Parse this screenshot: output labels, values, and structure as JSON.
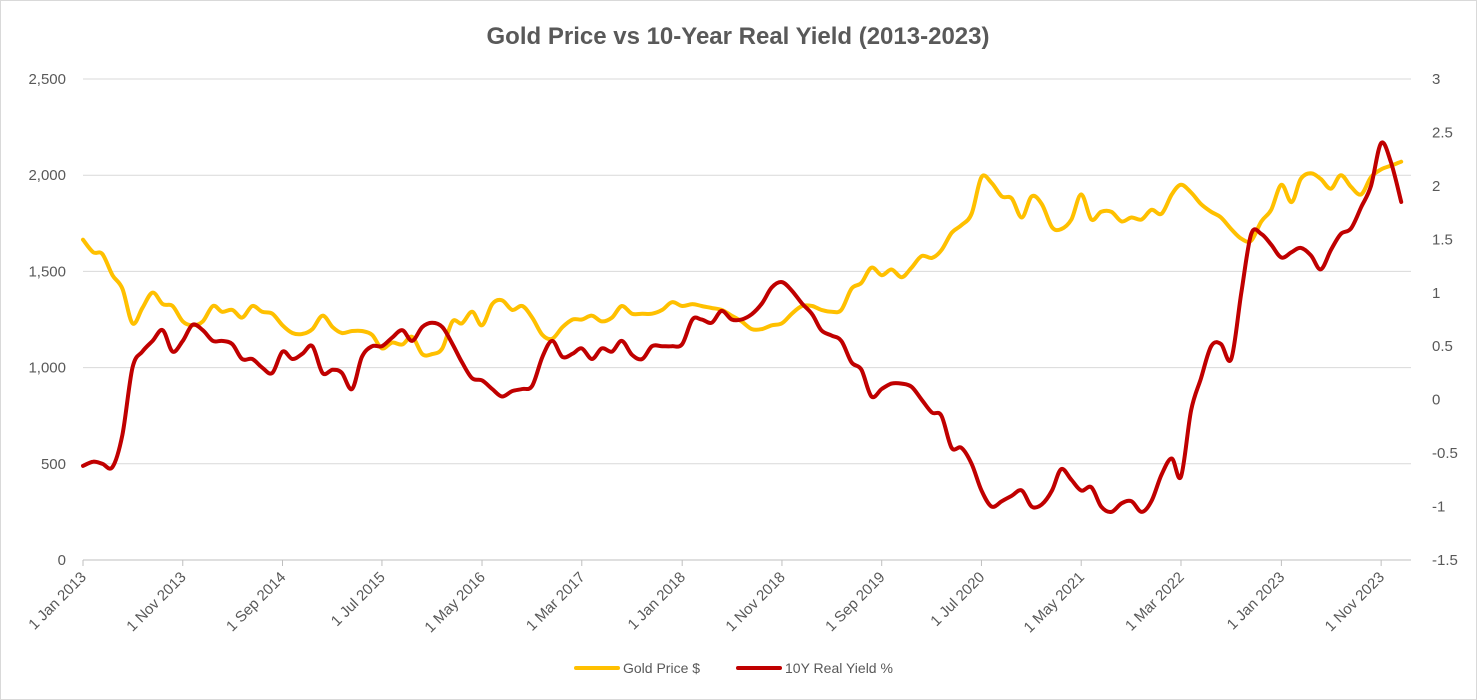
{
  "chart_data": {
    "type": "line",
    "title": "Gold Price vs 10-Year Real Yield (2013-2023)",
    "xlabel": "",
    "ylabel": "",
    "y2label": "",
    "grid": true,
    "legend_position": "bottom",
    "x_tick_labels": [
      "1 Jan 2013",
      "1 Nov 2013",
      "1 Sep 2014",
      "1 Jul 2015",
      "1 May 2016",
      "1 Mar 2017",
      "1 Jan 2018",
      "1 Nov 2018",
      "1 Sep 2019",
      "1 Jul 2020",
      "1 May 2021",
      "1 Mar 2022",
      "1 Jan 2023",
      "1 Nov 2023"
    ],
    "x_tick_dates": [
      "2013-01-01",
      "2013-11-01",
      "2014-09-01",
      "2015-07-01",
      "2016-05-01",
      "2017-03-01",
      "2018-01-01",
      "2018-11-01",
      "2019-09-01",
      "2020-07-01",
      "2021-05-01",
      "2022-03-01",
      "2023-01-01",
      "2023-11-01"
    ],
    "x_range": [
      "2013-01-01",
      "2024-01-31"
    ],
    "y_left": {
      "min": 0,
      "max": 2500,
      "ticks": [
        0,
        500,
        1000,
        1500,
        2000,
        2500
      ],
      "tick_labels": [
        "0",
        "500",
        "1,000",
        "1,500",
        "2,000",
        "2,500"
      ]
    },
    "y_right": {
      "min": -1.5,
      "max": 3,
      "ticks": [
        -1.5,
        -1,
        -0.5,
        0,
        0.5,
        1,
        1.5,
        2,
        2.5,
        3
      ],
      "tick_labels": [
        "-1.5",
        "-1",
        "-0.5",
        "0",
        "0.5",
        "1",
        "1.5",
        "2",
        "2.5",
        "3"
      ]
    },
    "series": [
      {
        "name": "Gold Price $",
        "axis": "left",
        "color": "#FFC000",
        "points": [
          [
            "2013-01-01",
            1665
          ],
          [
            "2013-02-01",
            1600
          ],
          [
            "2013-03-01",
            1590
          ],
          [
            "2013-04-01",
            1480
          ],
          [
            "2013-05-01",
            1410
          ],
          [
            "2013-06-01",
            1230
          ],
          [
            "2013-07-01",
            1310
          ],
          [
            "2013-08-01",
            1390
          ],
          [
            "2013-09-01",
            1330
          ],
          [
            "2013-10-01",
            1320
          ],
          [
            "2013-11-01",
            1240
          ],
          [
            "2013-12-01",
            1220
          ],
          [
            "2014-01-01",
            1240
          ],
          [
            "2014-02-01",
            1320
          ],
          [
            "2014-03-01",
            1290
          ],
          [
            "2014-04-01",
            1300
          ],
          [
            "2014-05-01",
            1260
          ],
          [
            "2014-06-01",
            1320
          ],
          [
            "2014-07-01",
            1290
          ],
          [
            "2014-08-01",
            1280
          ],
          [
            "2014-09-01",
            1220
          ],
          [
            "2014-10-01",
            1180
          ],
          [
            "2014-11-01",
            1175
          ],
          [
            "2014-12-01",
            1200
          ],
          [
            "2015-01-01",
            1270
          ],
          [
            "2015-02-01",
            1210
          ],
          [
            "2015-03-01",
            1180
          ],
          [
            "2015-04-01",
            1190
          ],
          [
            "2015-05-01",
            1190
          ],
          [
            "2015-06-01",
            1170
          ],
          [
            "2015-07-01",
            1100
          ],
          [
            "2015-08-01",
            1130
          ],
          [
            "2015-09-01",
            1120
          ],
          [
            "2015-10-01",
            1160
          ],
          [
            "2015-11-01",
            1070
          ],
          [
            "2015-12-01",
            1070
          ],
          [
            "2016-01-01",
            1100
          ],
          [
            "2016-02-01",
            1240
          ],
          [
            "2016-03-01",
            1230
          ],
          [
            "2016-04-01",
            1290
          ],
          [
            "2016-05-01",
            1220
          ],
          [
            "2016-06-01",
            1330
          ],
          [
            "2016-07-01",
            1350
          ],
          [
            "2016-08-01",
            1300
          ],
          [
            "2016-09-01",
            1320
          ],
          [
            "2016-10-01",
            1260
          ],
          [
            "2016-11-01",
            1170
          ],
          [
            "2016-12-01",
            1150
          ],
          [
            "2017-01-01",
            1210
          ],
          [
            "2017-02-01",
            1250
          ],
          [
            "2017-03-01",
            1250
          ],
          [
            "2017-04-01",
            1270
          ],
          [
            "2017-05-01",
            1240
          ],
          [
            "2017-06-01",
            1260
          ],
          [
            "2017-07-01",
            1320
          ],
          [
            "2017-08-01",
            1280
          ],
          [
            "2017-09-01",
            1280
          ],
          [
            "2017-10-01",
            1280
          ],
          [
            "2017-11-01",
            1300
          ],
          [
            "2017-12-01",
            1340
          ],
          [
            "2018-01-01",
            1320
          ],
          [
            "2018-02-01",
            1330
          ],
          [
            "2018-03-01",
            1320
          ],
          [
            "2018-04-01",
            1310
          ],
          [
            "2018-05-01",
            1300
          ],
          [
            "2018-06-01",
            1270
          ],
          [
            "2018-07-01",
            1240
          ],
          [
            "2018-08-01",
            1200
          ],
          [
            "2018-09-01",
            1200
          ],
          [
            "2018-10-01",
            1220
          ],
          [
            "2018-11-01",
            1230
          ],
          [
            "2018-12-01",
            1280
          ],
          [
            "2019-01-01",
            1320
          ],
          [
            "2019-02-01",
            1320
          ],
          [
            "2019-03-01",
            1300
          ],
          [
            "2019-04-01",
            1290
          ],
          [
            "2019-05-01",
            1300
          ],
          [
            "2019-06-01",
            1410
          ],
          [
            "2019-07-01",
            1440
          ],
          [
            "2019-08-01",
            1520
          ],
          [
            "2019-09-01",
            1480
          ],
          [
            "2019-10-01",
            1510
          ],
          [
            "2019-11-01",
            1470
          ],
          [
            "2019-12-01",
            1520
          ],
          [
            "2020-01-01",
            1580
          ],
          [
            "2020-02-01",
            1570
          ],
          [
            "2020-03-01",
            1610
          ],
          [
            "2020-04-01",
            1700
          ],
          [
            "2020-05-01",
            1740
          ],
          [
            "2020-06-01",
            1800
          ],
          [
            "2020-07-01",
            1990
          ],
          [
            "2020-08-01",
            1960
          ],
          [
            "2020-09-01",
            1890
          ],
          [
            "2020-10-01",
            1880
          ],
          [
            "2020-11-01",
            1780
          ],
          [
            "2020-12-01",
            1890
          ],
          [
            "2021-01-01",
            1850
          ],
          [
            "2021-02-01",
            1730
          ],
          [
            "2021-03-01",
            1720
          ],
          [
            "2021-04-01",
            1770
          ],
          [
            "2021-05-01",
            1900
          ],
          [
            "2021-06-01",
            1770
          ],
          [
            "2021-07-01",
            1810
          ],
          [
            "2021-08-01",
            1810
          ],
          [
            "2021-09-01",
            1760
          ],
          [
            "2021-10-01",
            1780
          ],
          [
            "2021-11-01",
            1770
          ],
          [
            "2021-12-01",
            1820
          ],
          [
            "2022-01-01",
            1800
          ],
          [
            "2022-02-01",
            1900
          ],
          [
            "2022-03-01",
            1950
          ],
          [
            "2022-04-01",
            1910
          ],
          [
            "2022-05-01",
            1850
          ],
          [
            "2022-06-01",
            1810
          ],
          [
            "2022-07-01",
            1780
          ],
          [
            "2022-08-01",
            1720
          ],
          [
            "2022-09-01",
            1670
          ],
          [
            "2022-10-01",
            1660
          ],
          [
            "2022-11-01",
            1760
          ],
          [
            "2022-12-01",
            1820
          ],
          [
            "2023-01-01",
            1950
          ],
          [
            "2023-02-01",
            1860
          ],
          [
            "2023-03-01",
            1980
          ],
          [
            "2023-04-01",
            2010
          ],
          [
            "2023-05-01",
            1980
          ],
          [
            "2023-06-01",
            1930
          ],
          [
            "2023-07-01",
            2000
          ],
          [
            "2023-08-01",
            1940
          ],
          [
            "2023-09-01",
            1900
          ],
          [
            "2023-10-01",
            1990
          ],
          [
            "2023-11-01",
            2030
          ],
          [
            "2023-12-01",
            2050
          ],
          [
            "2024-01-01",
            2070
          ]
        ]
      },
      {
        "name": "10Y Real Yield %",
        "axis": "right",
        "color": "#C00000",
        "points": [
          [
            "2013-01-01",
            -0.62
          ],
          [
            "2013-02-01",
            -0.58
          ],
          [
            "2013-03-01",
            -0.6
          ],
          [
            "2013-04-01",
            -0.63
          ],
          [
            "2013-05-01",
            -0.33
          ],
          [
            "2013-06-01",
            0.3
          ],
          [
            "2013-07-01",
            0.45
          ],
          [
            "2013-08-01",
            0.55
          ],
          [
            "2013-09-01",
            0.65
          ],
          [
            "2013-10-01",
            0.45
          ],
          [
            "2013-11-01",
            0.55
          ],
          [
            "2013-12-01",
            0.7
          ],
          [
            "2014-01-01",
            0.65
          ],
          [
            "2014-02-01",
            0.55
          ],
          [
            "2014-03-01",
            0.55
          ],
          [
            "2014-04-01",
            0.52
          ],
          [
            "2014-05-01",
            0.38
          ],
          [
            "2014-06-01",
            0.38
          ],
          [
            "2014-07-01",
            0.3
          ],
          [
            "2014-08-01",
            0.25
          ],
          [
            "2014-09-01",
            0.45
          ],
          [
            "2014-10-01",
            0.38
          ],
          [
            "2014-11-01",
            0.43
          ],
          [
            "2014-12-01",
            0.5
          ],
          [
            "2015-01-01",
            0.25
          ],
          [
            "2015-02-01",
            0.28
          ],
          [
            "2015-03-01",
            0.25
          ],
          [
            "2015-04-01",
            0.1
          ],
          [
            "2015-05-01",
            0.4
          ],
          [
            "2015-06-01",
            0.5
          ],
          [
            "2015-07-01",
            0.5
          ],
          [
            "2015-08-01",
            0.58
          ],
          [
            "2015-09-01",
            0.65
          ],
          [
            "2015-10-01",
            0.55
          ],
          [
            "2015-11-01",
            0.68
          ],
          [
            "2015-12-01",
            0.72
          ],
          [
            "2016-01-01",
            0.68
          ],
          [
            "2016-02-01",
            0.52
          ],
          [
            "2016-03-01",
            0.35
          ],
          [
            "2016-04-01",
            0.2
          ],
          [
            "2016-05-01",
            0.18
          ],
          [
            "2016-06-01",
            0.1
          ],
          [
            "2016-07-01",
            0.03
          ],
          [
            "2016-08-01",
            0.08
          ],
          [
            "2016-09-01",
            0.1
          ],
          [
            "2016-10-01",
            0.13
          ],
          [
            "2016-11-01",
            0.4
          ],
          [
            "2016-12-01",
            0.55
          ],
          [
            "2017-01-01",
            0.4
          ],
          [
            "2017-02-01",
            0.43
          ],
          [
            "2017-03-01",
            0.48
          ],
          [
            "2017-04-01",
            0.38
          ],
          [
            "2017-05-01",
            0.48
          ],
          [
            "2017-06-01",
            0.45
          ],
          [
            "2017-07-01",
            0.55
          ],
          [
            "2017-08-01",
            0.42
          ],
          [
            "2017-09-01",
            0.38
          ],
          [
            "2017-10-01",
            0.5
          ],
          [
            "2017-11-01",
            0.5
          ],
          [
            "2017-12-01",
            0.5
          ],
          [
            "2018-01-01",
            0.52
          ],
          [
            "2018-02-01",
            0.75
          ],
          [
            "2018-03-01",
            0.75
          ],
          [
            "2018-04-01",
            0.72
          ],
          [
            "2018-05-01",
            0.83
          ],
          [
            "2018-06-01",
            0.75
          ],
          [
            "2018-07-01",
            0.75
          ],
          [
            "2018-08-01",
            0.8
          ],
          [
            "2018-09-01",
            0.9
          ],
          [
            "2018-10-01",
            1.05
          ],
          [
            "2018-11-01",
            1.1
          ],
          [
            "2018-12-01",
            1.02
          ],
          [
            "2019-01-01",
            0.9
          ],
          [
            "2019-02-01",
            0.8
          ],
          [
            "2019-03-01",
            0.65
          ],
          [
            "2019-04-01",
            0.6
          ],
          [
            "2019-05-01",
            0.55
          ],
          [
            "2019-06-01",
            0.35
          ],
          [
            "2019-07-01",
            0.28
          ],
          [
            "2019-08-01",
            0.03
          ],
          [
            "2019-09-01",
            0.1
          ],
          [
            "2019-10-01",
            0.15
          ],
          [
            "2019-11-01",
            0.15
          ],
          [
            "2019-12-01",
            0.12
          ],
          [
            "2020-01-01",
            0.0
          ],
          [
            "2020-02-01",
            -0.12
          ],
          [
            "2020-03-01",
            -0.15
          ],
          [
            "2020-04-01",
            -0.45
          ],
          [
            "2020-05-01",
            -0.45
          ],
          [
            "2020-06-01",
            -0.6
          ],
          [
            "2020-07-01",
            -0.85
          ],
          [
            "2020-08-01",
            -1.0
          ],
          [
            "2020-09-01",
            -0.95
          ],
          [
            "2020-10-01",
            -0.9
          ],
          [
            "2020-11-01",
            -0.85
          ],
          [
            "2020-12-01",
            -1.0
          ],
          [
            "2021-01-01",
            -0.98
          ],
          [
            "2021-02-01",
            -0.85
          ],
          [
            "2021-03-01",
            -0.65
          ],
          [
            "2021-04-01",
            -0.75
          ],
          [
            "2021-05-01",
            -0.85
          ],
          [
            "2021-06-01",
            -0.82
          ],
          [
            "2021-07-01",
            -1.0
          ],
          [
            "2021-08-01",
            -1.05
          ],
          [
            "2021-09-01",
            -0.97
          ],
          [
            "2021-10-01",
            -0.95
          ],
          [
            "2021-11-01",
            -1.05
          ],
          [
            "2021-12-01",
            -0.95
          ],
          [
            "2022-01-01",
            -0.7
          ],
          [
            "2022-02-01",
            -0.55
          ],
          [
            "2022-03-01",
            -0.72
          ],
          [
            "2022-04-01",
            -0.1
          ],
          [
            "2022-05-01",
            0.2
          ],
          [
            "2022-06-01",
            0.5
          ],
          [
            "2022-07-01",
            0.52
          ],
          [
            "2022-08-01",
            0.38
          ],
          [
            "2022-09-01",
            1.0
          ],
          [
            "2022-10-01",
            1.55
          ],
          [
            "2022-11-01",
            1.55
          ],
          [
            "2022-12-01",
            1.45
          ],
          [
            "2023-01-01",
            1.33
          ],
          [
            "2023-02-01",
            1.38
          ],
          [
            "2023-03-01",
            1.42
          ],
          [
            "2023-04-01",
            1.35
          ],
          [
            "2023-05-01",
            1.22
          ],
          [
            "2023-06-01",
            1.4
          ],
          [
            "2023-07-01",
            1.55
          ],
          [
            "2023-08-01",
            1.6
          ],
          [
            "2023-09-01",
            1.8
          ],
          [
            "2023-10-01",
            2.0
          ],
          [
            "2023-11-01",
            2.4
          ],
          [
            "2023-12-01",
            2.22
          ],
          [
            "2024-01-01",
            1.85
          ]
        ]
      }
    ]
  }
}
